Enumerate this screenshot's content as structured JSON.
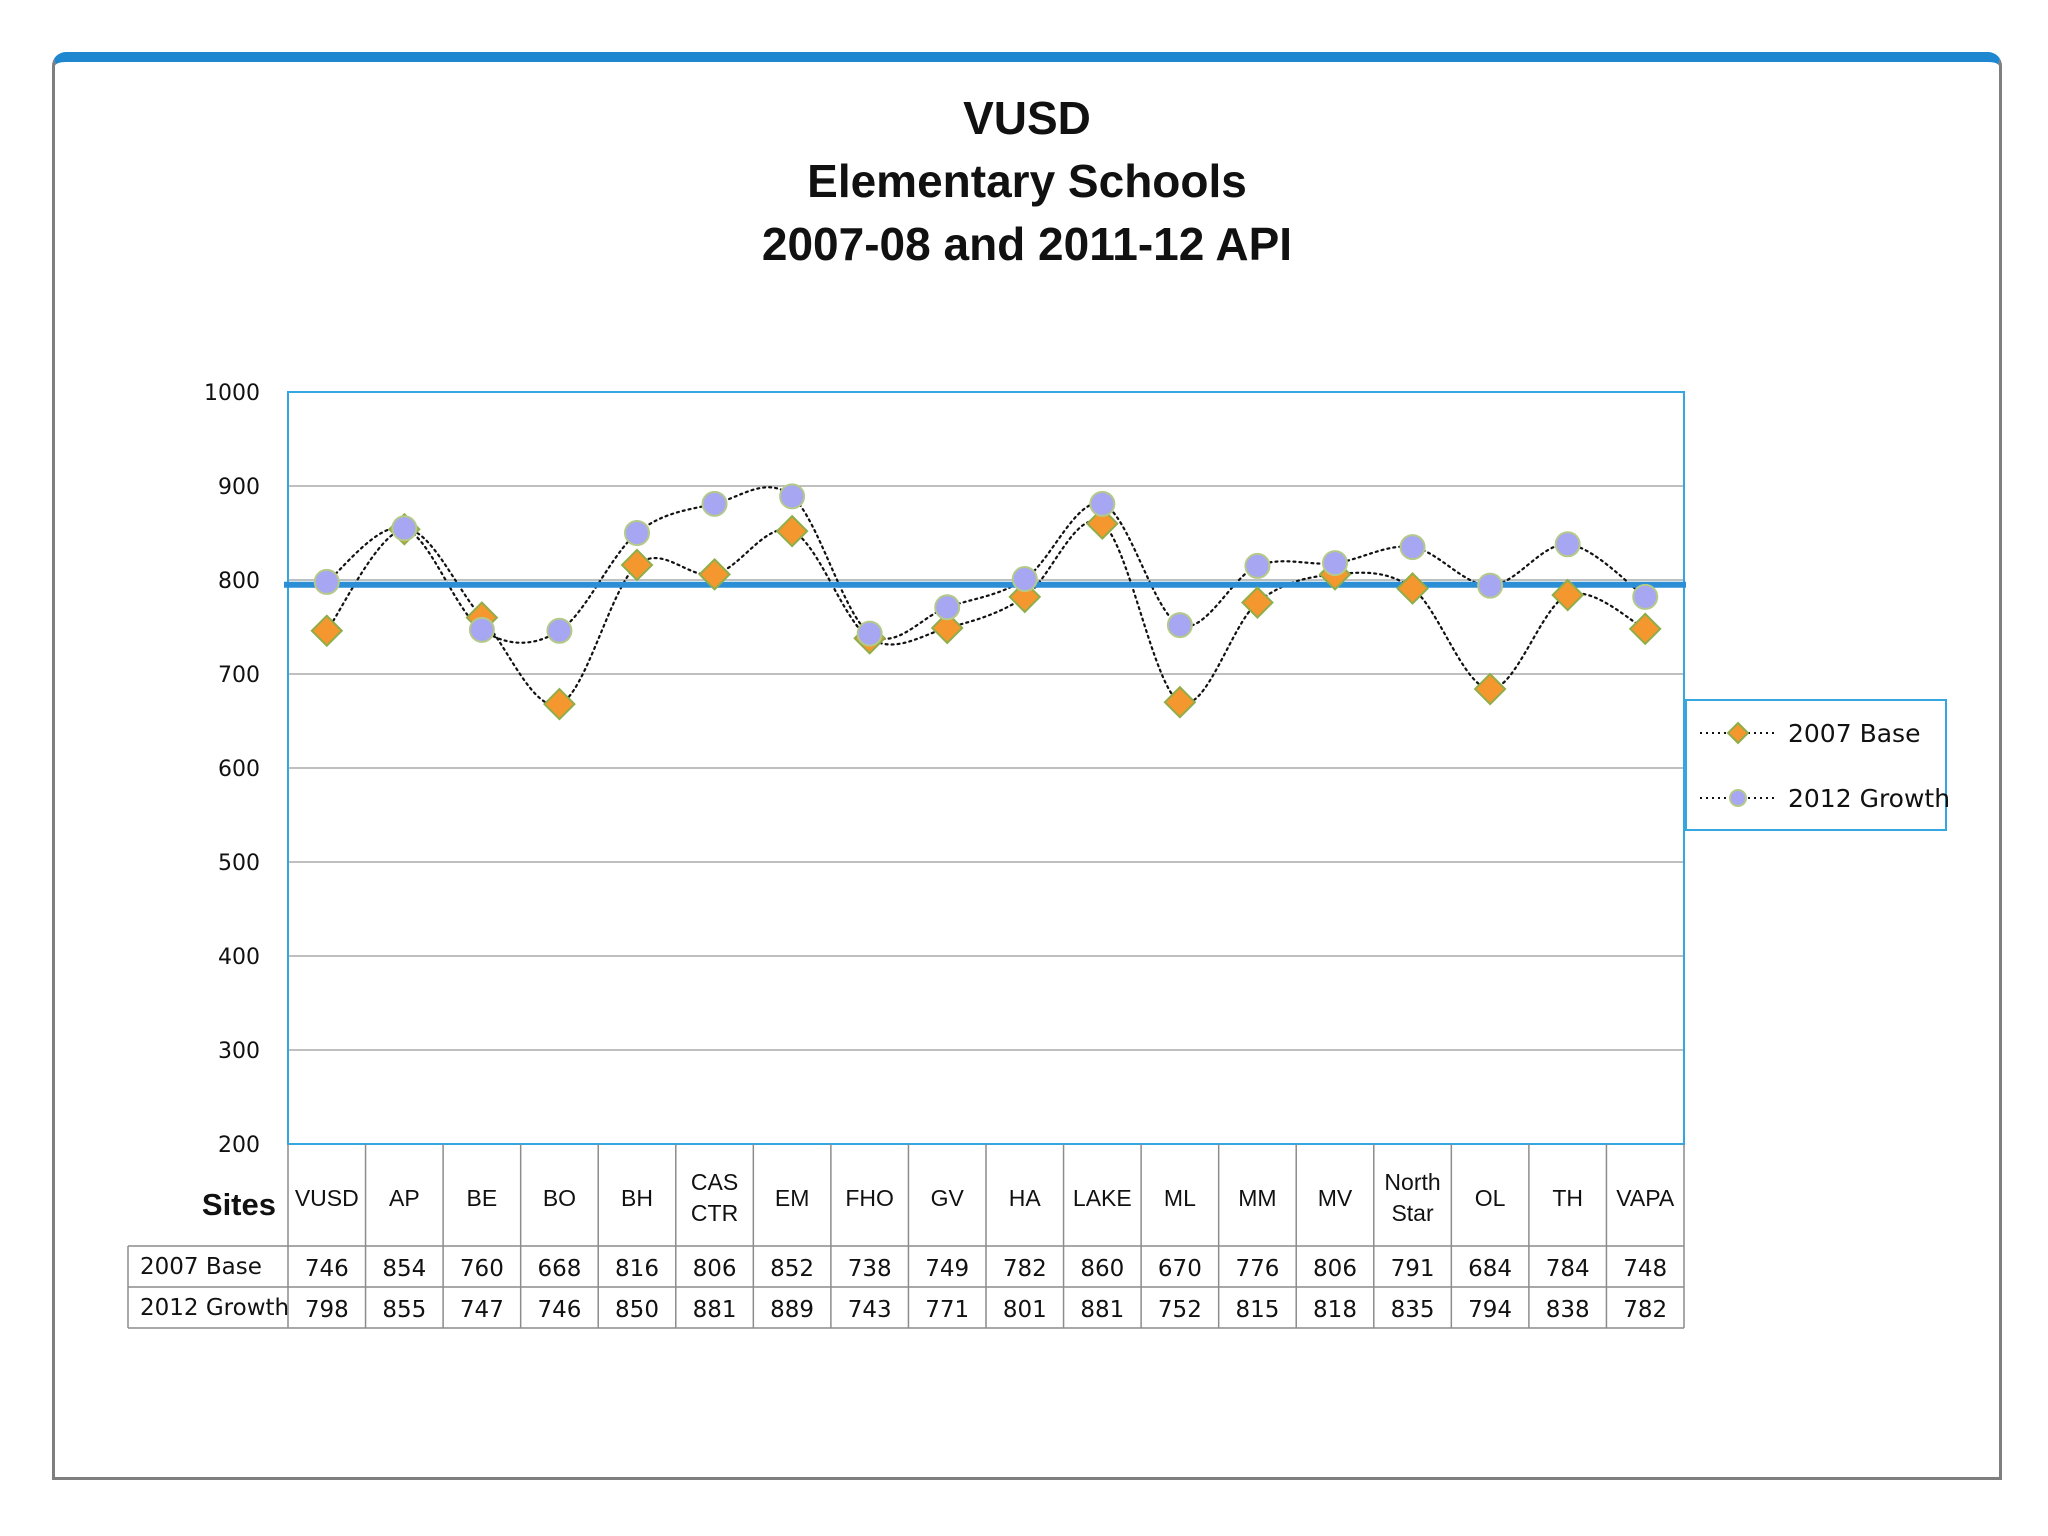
{
  "title": [
    "VUSD",
    "Elementary Schools",
    "2007-08 and 2011-12 API"
  ],
  "table_header": "Sites",
  "colors": {
    "frame_top": "#1f87cf",
    "plot_border": "#35a6e0",
    "reference_line": "#2c8fd6",
    "base_marker": "#f5972f",
    "base_marker_edge": "#8fae4a",
    "growth_marker": "#a6a6f2",
    "growth_marker_edge": "#b5c98a",
    "gridline": "#aaaaaa"
  },
  "chart_data": {
    "type": "line",
    "categories": [
      [
        "VUSD"
      ],
      [
        "AP"
      ],
      [
        "BE"
      ],
      [
        "BO"
      ],
      [
        "BH"
      ],
      [
        "CAS",
        "CTR"
      ],
      [
        "EM"
      ],
      [
        "FHO"
      ],
      [
        "GV"
      ],
      [
        "HA"
      ],
      [
        "LAKE"
      ],
      [
        "ML"
      ],
      [
        "MM"
      ],
      [
        "MV"
      ],
      [
        "North",
        "Star"
      ],
      [
        "OL"
      ],
      [
        "TH"
      ],
      [
        "VAPA"
      ]
    ],
    "series": [
      {
        "name": "2007 Base",
        "marker": "diamond",
        "values": [
          746,
          854,
          760,
          668,
          816,
          806,
          852,
          738,
          749,
          782,
          860,
          670,
          776,
          806,
          791,
          684,
          784,
          748
        ]
      },
      {
        "name": "2012 Growth",
        "marker": "circle",
        "values": [
          798,
          855,
          747,
          746,
          850,
          881,
          889,
          743,
          771,
          801,
          881,
          752,
          815,
          818,
          835,
          794,
          838,
          782
        ]
      }
    ],
    "ylim": [
      200,
      1000
    ],
    "yticks": [
      "200",
      "300",
      "400",
      "500",
      "600",
      "700",
      "800",
      "900",
      "1000"
    ],
    "reference_line": 795,
    "grid": true,
    "legend": "right"
  }
}
